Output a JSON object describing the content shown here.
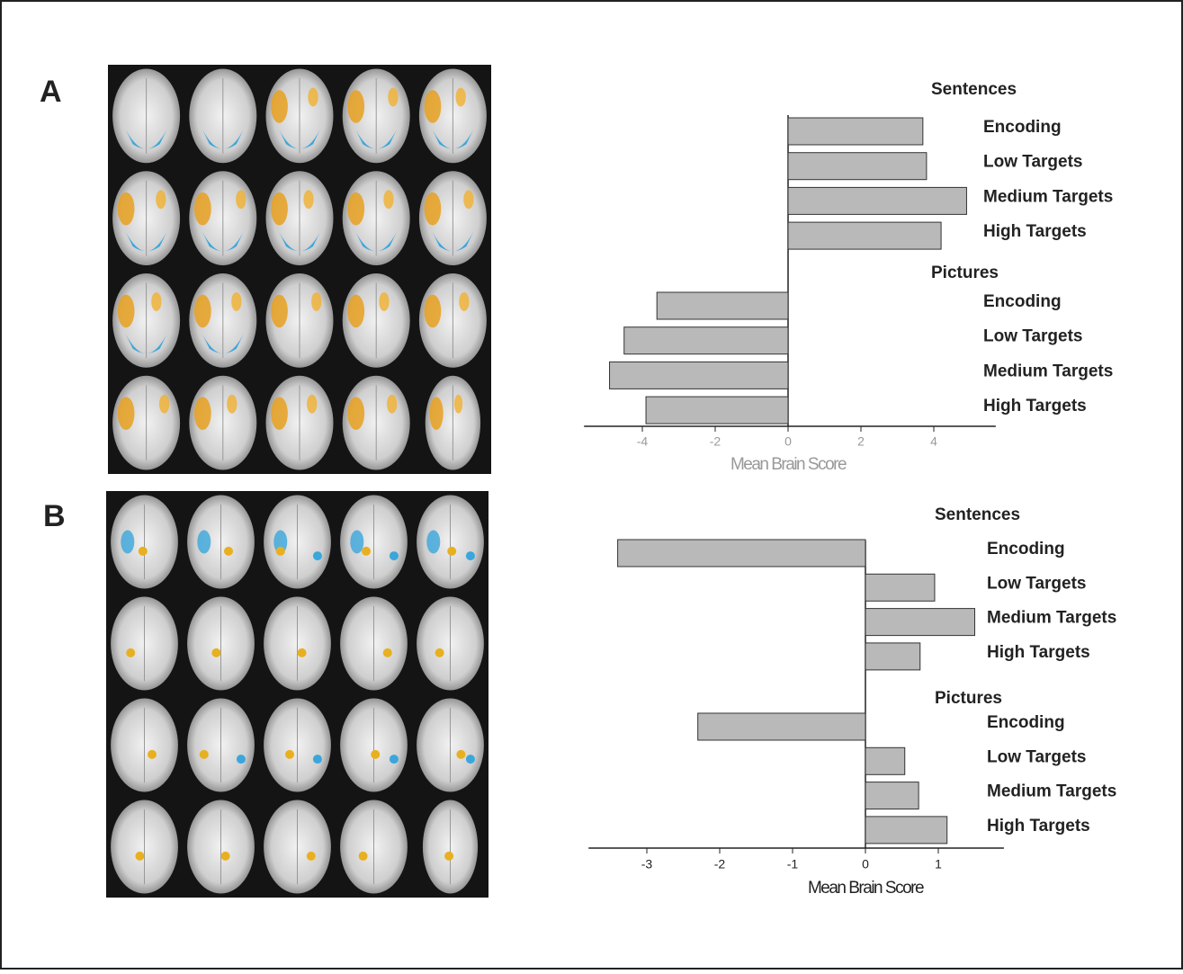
{
  "panel_labels": [
    "A",
    "B"
  ],
  "chart_data": [
    {
      "type": "bar",
      "orientation": "horizontal",
      "color": "#b9b9b9",
      "x_label": "Mean Brain Score",
      "xlim": [
        -5.6,
        5.7
      ],
      "xticks": [
        -4,
        -2,
        0,
        2,
        4
      ],
      "groups": [
        {
          "name": "Sentences",
          "categories": [
            "Encoding",
            "Low Targets",
            "Medium Targets",
            "High Targets"
          ],
          "values": [
            3.7,
            3.8,
            4.9,
            4.2
          ]
        },
        {
          "name": "Pictures",
          "categories": [
            "Encoding",
            "Low Targets",
            "Medium Targets",
            "High Targets"
          ],
          "values": [
            -3.6,
            -4.5,
            -4.9,
            -3.9
          ]
        }
      ]
    },
    {
      "type": "bar",
      "orientation": "horizontal",
      "color": "#b9b9b9",
      "x_label": "Mean Brain Score",
      "xlim": [
        -3.8,
        1.9
      ],
      "xticks": [
        -3,
        -2,
        -1,
        0,
        1
      ],
      "groups": [
        {
          "name": "Sentences",
          "categories": [
            "Encoding",
            "Low Targets",
            "Medium Targets",
            "High Targets"
          ],
          "values": [
            -3.4,
            0.95,
            1.5,
            0.75
          ]
        },
        {
          "name": "Pictures",
          "categories": [
            "Encoding",
            "Low Targets",
            "Medium Targets",
            "High Targets"
          ],
          "values": [
            -2.3,
            0.54,
            0.73,
            1.12
          ]
        }
      ]
    }
  ]
}
